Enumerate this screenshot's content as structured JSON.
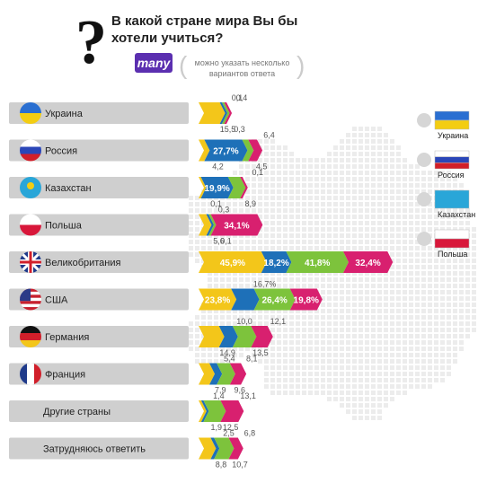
{
  "header": {
    "question": "В какой стране мира Вы бы хотели учиться?",
    "badge": "many",
    "note": "можно указать несколько вариантов ответа"
  },
  "legend": {
    "items": [
      {
        "label": "Украина",
        "colors": [
          "#2a6fd1",
          "#f3cd12"
        ]
      },
      {
        "label": "Россия",
        "colors": [
          "#ffffff",
          "#2a46b8",
          "#d11f2a"
        ]
      },
      {
        "label": "Казахстан",
        "colors": [
          "#29a6d8"
        ]
      },
      {
        "label": "Польша",
        "colors": [
          "#ffffff",
          "#d8173a"
        ]
      }
    ]
  },
  "colors": {
    "Украина": "#f3c61a",
    "Россия": "#1e70b8",
    "Казахстан": "#7dc33c",
    "Польша": "#d8206f",
    "row_bg": "#cfcfcf"
  },
  "chart_data": {
    "type": "bar",
    "stacked": true,
    "title": "В какой стране мира Вы бы хотели учиться?",
    "series_order": [
      "Украина",
      "Россия",
      "Казахстан",
      "Польша"
    ],
    "categories": [
      {
        "label": "Украина",
        "flag": "ukraine",
        "values": [
          15.5,
          0.1,
          0.3,
          0.4
        ]
      },
      {
        "label": "Россия",
        "flag": "russia",
        "values": [
          4.2,
          27.7,
          4.5,
          6.4
        ]
      },
      {
        "label": "Казахстан",
        "flag": "kazakhstan",
        "values": [
          0.1,
          19.9,
          8.9,
          0.1
        ]
      },
      {
        "label": "Польша",
        "flag": "poland",
        "values": [
          5.6,
          0.3,
          0.1,
          34.1
        ]
      },
      {
        "label": "Великобритания",
        "flag": "uk",
        "values": [
          45.9,
          18.2,
          41.8,
          32.4
        ]
      },
      {
        "label": "США",
        "flag": "usa",
        "values": [
          23.8,
          16.7,
          26.4,
          19.8
        ]
      },
      {
        "label": "Германия",
        "flag": "germany",
        "values": [
          14.9,
          10.0,
          13.5,
          12.1
        ]
      },
      {
        "label": "Франция",
        "flag": "france",
        "values": [
          7.9,
          5.4,
          9.6,
          8.1
        ]
      },
      {
        "label": "Другие страны",
        "flag": "",
        "values": [
          1.9,
          1.4,
          12.5,
          13.1
        ]
      },
      {
        "label": "Затрудняюсь ответить",
        "flag": "",
        "values": [
          8.8,
          2.5,
          10.7,
          6.8
        ]
      }
    ],
    "value_labels": [
      [
        "15,5",
        "0,1",
        "0,3",
        "0,4"
      ],
      [
        "4,2",
        "27,7%",
        "4,5",
        "6,4"
      ],
      [
        "0,1",
        "19,9%",
        "8,9",
        "0,1"
      ],
      [
        "5,6",
        "0,3",
        "0,1",
        "34,1%"
      ],
      [
        "45,9%",
        "18,2%",
        "41,8%",
        "32,4%"
      ],
      [
        "23,8%",
        "16,7%",
        "26,4%",
        "19,8%"
      ],
      [
        "14,9",
        "10,0",
        "13,5",
        "12,1"
      ],
      [
        "7,9",
        "5,4",
        "9,6",
        "8,1"
      ],
      [
        "1,9",
        "1,4",
        "12,5",
        "13,1"
      ],
      [
        "8,8",
        "2,5",
        "10,7",
        "6,8"
      ]
    ]
  }
}
